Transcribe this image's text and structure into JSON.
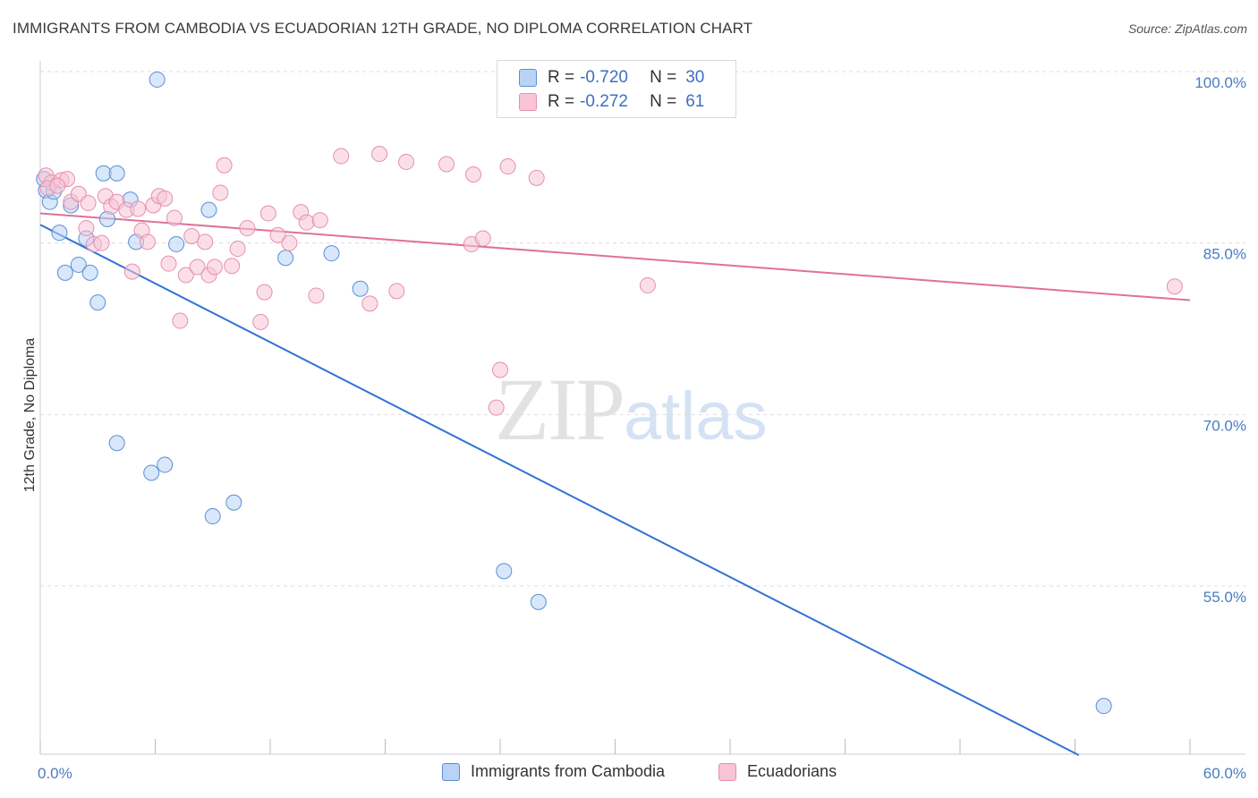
{
  "title": "IMMIGRANTS FROM CAMBODIA VS ECUADORIAN 12TH GRADE, NO DIPLOMA CORRELATION CHART",
  "source": "Source: ZipAtlas.com",
  "watermark": {
    "zip": "ZIP",
    "atlas": "atlas"
  },
  "legend": {
    "cambodia": {
      "r_label": "R =",
      "r_value": "-0.720",
      "n_label": "N =",
      "n_value": "30"
    },
    "ecuador": {
      "r_label": "R =",
      "r_value": "-0.272",
      "n_label": "N =",
      "n_value": "61"
    }
  },
  "colors": {
    "cambodia_fill": "#b8d3f5",
    "cambodia_stroke": "#5a8fd6",
    "cambodia_line": "#2f73d4",
    "ecuador_fill": "#f8c4d6",
    "ecuador_stroke": "#e68fae",
    "ecuador_line": "#e0709a",
    "tick_text": "#4a7cc0",
    "grid": "#dddddd"
  },
  "chart_data": {
    "type": "scatter",
    "xlabel": "",
    "ylabel": "12th Grade, No Diploma",
    "xlim": [
      0,
      60
    ],
    "ylim": [
      40,
      101
    ],
    "x_tick_labels": [
      {
        "value": 0,
        "label": "0.0%"
      },
      {
        "value": 60,
        "label": "60.0%"
      }
    ],
    "y_tick_labels": [
      {
        "value": 100,
        "label": "100.0%"
      },
      {
        "value": 85,
        "label": "85.0%"
      },
      {
        "value": 70,
        "label": "70.0%"
      },
      {
        "value": 55,
        "label": "55.0%"
      }
    ],
    "series": [
      {
        "name": "Immigrants from Cambodia",
        "key": "cambodia",
        "points": [
          [
            0.3,
            89.6
          ],
          [
            0.5,
            88.6
          ],
          [
            0.7,
            89.5
          ],
          [
            1.0,
            85.9
          ],
          [
            1.3,
            82.4
          ],
          [
            1.6,
            88.3
          ],
          [
            2.0,
            83.1
          ],
          [
            2.4,
            85.4
          ],
          [
            2.6,
            82.4
          ],
          [
            3.0,
            79.8
          ],
          [
            3.5,
            87.1
          ],
          [
            3.3,
            91.1
          ],
          [
            4.0,
            91.1
          ],
          [
            4.7,
            88.8
          ],
          [
            5.0,
            85.1
          ],
          [
            6.1,
            99.3
          ],
          [
            7.1,
            84.9
          ],
          [
            8.8,
            87.9
          ],
          [
            12.8,
            83.7
          ],
          [
            15.2,
            84.1
          ],
          [
            16.7,
            81.0
          ],
          [
            4.0,
            67.5
          ],
          [
            5.8,
            64.9
          ],
          [
            6.5,
            65.6
          ],
          [
            9.0,
            61.1
          ],
          [
            10.1,
            62.3
          ],
          [
            24.2,
            56.3
          ],
          [
            26.0,
            53.6
          ],
          [
            55.5,
            44.5
          ],
          [
            0.2,
            90.6
          ]
        ],
        "trend": {
          "x": [
            0,
            54.2
          ],
          "y": [
            86.6,
            40.2
          ]
        }
      },
      {
        "name": "Ecuadorians",
        "key": "ecuador",
        "points": [
          [
            0.3,
            90.9
          ],
          [
            0.6,
            90.3
          ],
          [
            1.1,
            90.5
          ],
          [
            1.4,
            90.6
          ],
          [
            1.6,
            88.6
          ],
          [
            2.0,
            89.3
          ],
          [
            2.5,
            88.5
          ],
          [
            2.4,
            86.3
          ],
          [
            2.8,
            84.9
          ],
          [
            3.2,
            85.0
          ],
          [
            3.4,
            89.1
          ],
          [
            3.7,
            88.2
          ],
          [
            4.0,
            88.6
          ],
          [
            4.5,
            87.9
          ],
          [
            4.8,
            82.5
          ],
          [
            5.1,
            88.0
          ],
          [
            5.3,
            86.1
          ],
          [
            5.6,
            85.1
          ],
          [
            5.9,
            88.3
          ],
          [
            6.2,
            89.1
          ],
          [
            6.5,
            88.9
          ],
          [
            6.7,
            83.2
          ],
          [
            7.0,
            87.2
          ],
          [
            7.3,
            78.2
          ],
          [
            7.6,
            82.2
          ],
          [
            7.9,
            85.6
          ],
          [
            8.2,
            82.9
          ],
          [
            8.6,
            85.1
          ],
          [
            8.8,
            82.2
          ],
          [
            9.1,
            82.9
          ],
          [
            9.4,
            89.4
          ],
          [
            9.6,
            91.8
          ],
          [
            10.0,
            83.0
          ],
          [
            10.3,
            84.5
          ],
          [
            10.8,
            86.3
          ],
          [
            11.5,
            78.1
          ],
          [
            11.7,
            80.7
          ],
          [
            11.9,
            87.6
          ],
          [
            12.4,
            85.7
          ],
          [
            13.0,
            85.0
          ],
          [
            13.6,
            87.7
          ],
          [
            13.9,
            86.8
          ],
          [
            14.4,
            80.4
          ],
          [
            14.6,
            87.0
          ],
          [
            15.7,
            92.6
          ],
          [
            17.2,
            79.7
          ],
          [
            17.7,
            92.8
          ],
          [
            18.6,
            80.8
          ],
          [
            19.1,
            92.1
          ],
          [
            21.2,
            91.9
          ],
          [
            22.5,
            84.9
          ],
          [
            22.6,
            91.0
          ],
          [
            23.1,
            85.4
          ],
          [
            24.0,
            73.9
          ],
          [
            23.8,
            70.6
          ],
          [
            24.4,
            91.7
          ],
          [
            25.9,
            90.7
          ],
          [
            31.7,
            81.3
          ],
          [
            59.2,
            81.2
          ],
          [
            0.4,
            89.8
          ],
          [
            0.9,
            90.0
          ]
        ],
        "trend": {
          "x": [
            0,
            60
          ],
          "y": [
            87.6,
            80.0
          ]
        }
      }
    ]
  }
}
